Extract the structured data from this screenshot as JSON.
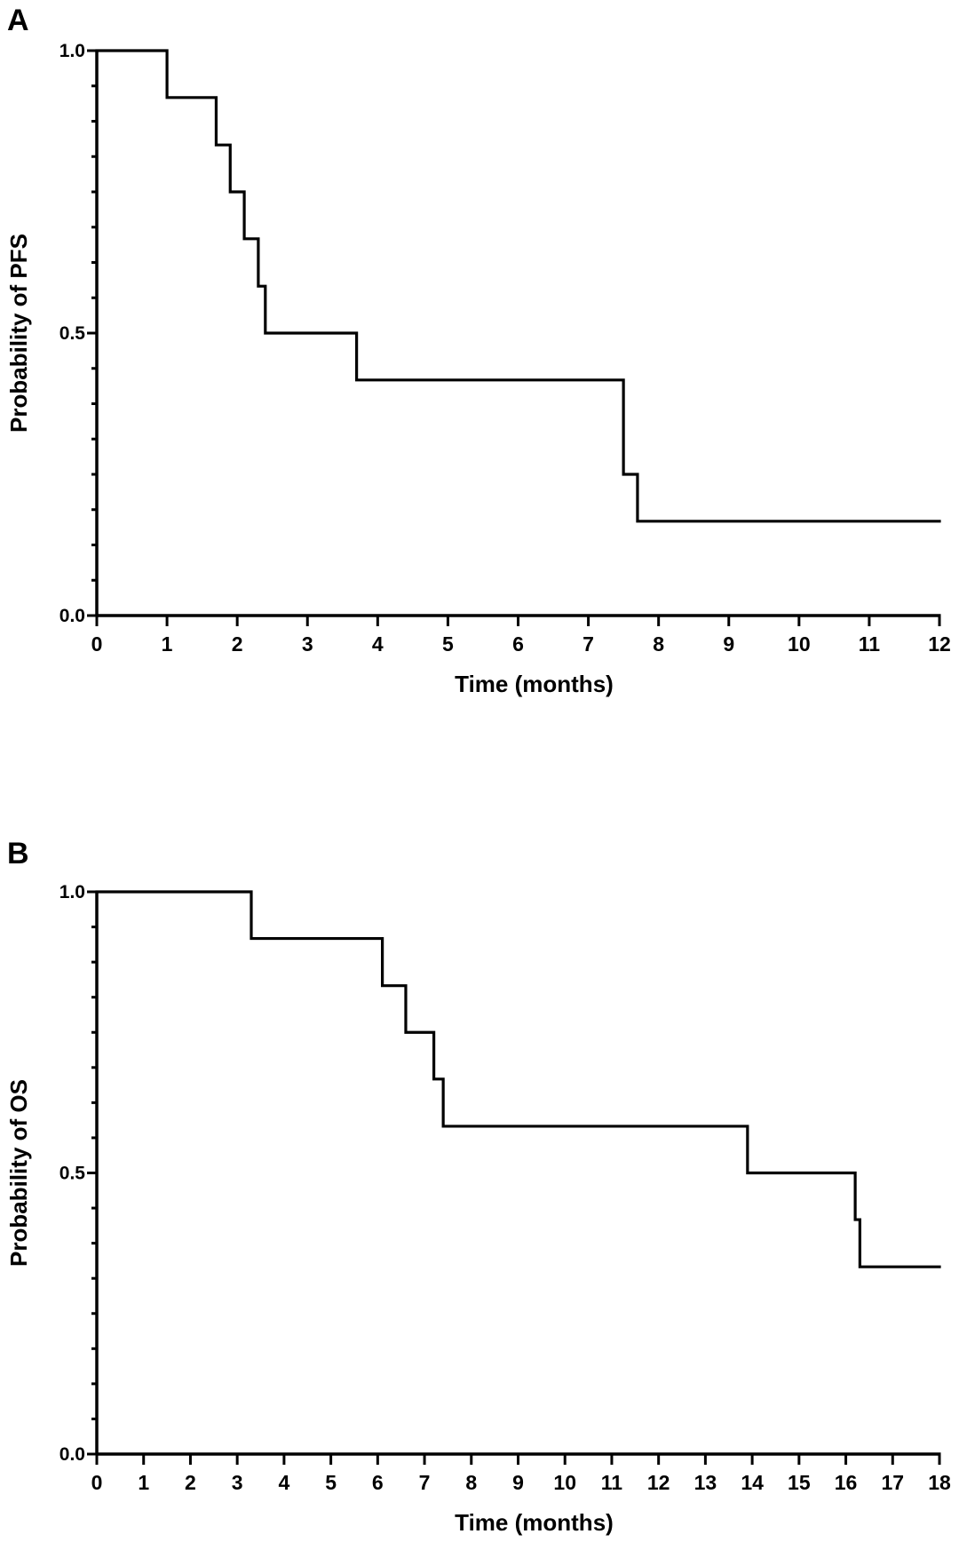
{
  "chart_data": [
    {
      "type": "line",
      "panel_label": "A",
      "title": "",
      "xlabel": "Time (months)",
      "ylabel": "Probability of PFS",
      "xlim": [
        0,
        12
      ],
      "ylim": [
        0,
        1
      ],
      "x_ticks": [
        0,
        1,
        2,
        3,
        4,
        5,
        6,
        7,
        8,
        9,
        10,
        11,
        12
      ],
      "y_tick_labels": [
        "0.0",
        "0.5",
        "1.0"
      ],
      "y_minor_step": 0.0625,
      "grid": false,
      "step": true,
      "series": [
        {
          "x": [
            0,
            1.0,
            1.7,
            1.9,
            2.1,
            2.3,
            2.4,
            3.7,
            7.5,
            7.7,
            12.0
          ],
          "y": [
            1.0,
            0.917,
            0.833,
            0.75,
            0.667,
            0.583,
            0.5,
            0.417,
            0.25,
            0.167,
            0.167
          ]
        }
      ]
    },
    {
      "type": "line",
      "panel_label": "B",
      "title": "",
      "xlabel": "Time (months)",
      "ylabel": "Probability of OS",
      "xlim": [
        0,
        18
      ],
      "ylim": [
        0,
        1
      ],
      "x_ticks": [
        0,
        1,
        2,
        3,
        4,
        5,
        6,
        7,
        8,
        9,
        10,
        11,
        12,
        13,
        14,
        15,
        16,
        17,
        18
      ],
      "y_tick_labels": [
        "0.0",
        "0.5",
        "1.0"
      ],
      "y_minor_step": 0.0625,
      "grid": false,
      "step": true,
      "series": [
        {
          "x": [
            0,
            3.3,
            6.1,
            6.6,
            7.2,
            7.4,
            13.9,
            16.2,
            16.3,
            18.0
          ],
          "y": [
            1.0,
            0.917,
            0.833,
            0.75,
            0.667,
            0.583,
            0.5,
            0.417,
            0.333,
            0.333
          ]
        }
      ]
    }
  ]
}
